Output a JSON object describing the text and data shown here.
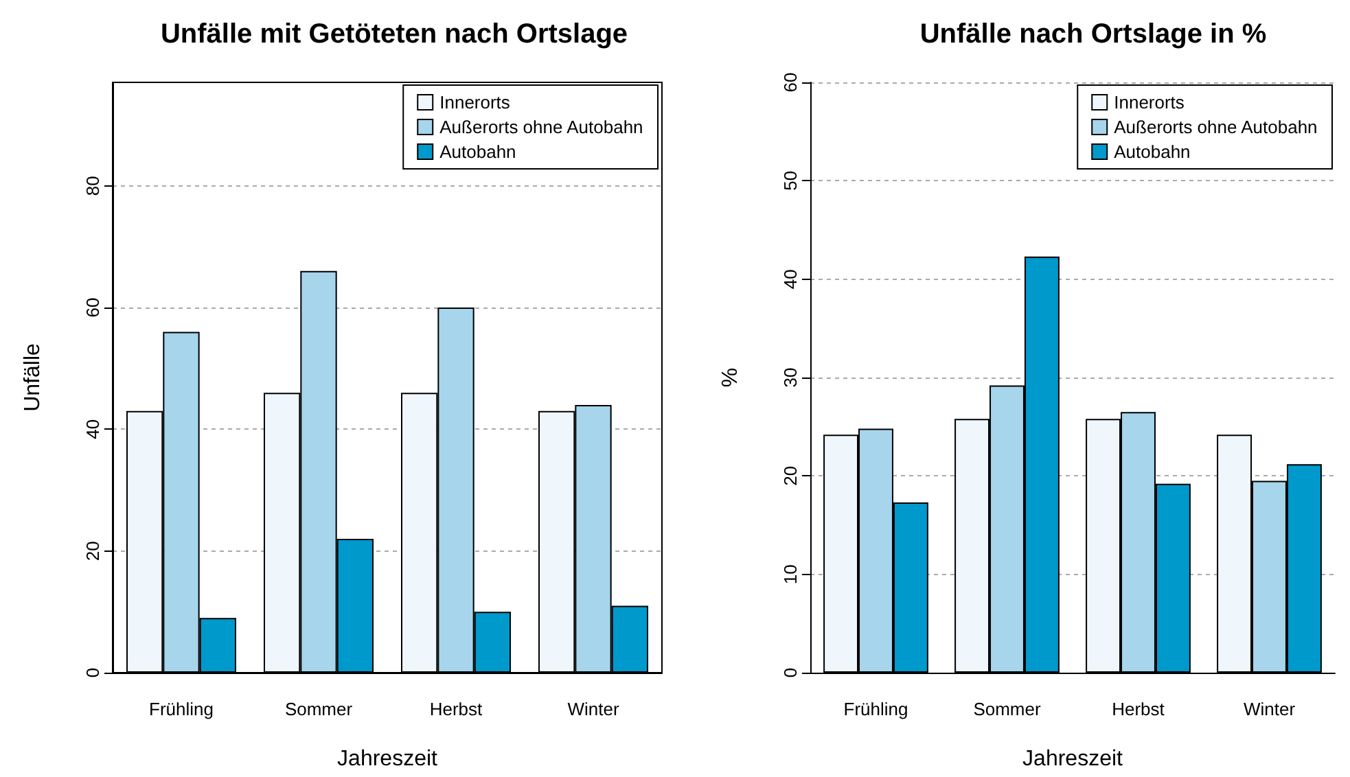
{
  "chart_data": [
    {
      "type": "bar",
      "title": "Unfälle mit Getöteten nach Ortslage",
      "xlabel": "Jahreszeit",
      "ylabel": "Unfälle",
      "categories": [
        "Frühling",
        "Sommer",
        "Herbst",
        "Winter"
      ],
      "series": [
        {
          "name": "Innerorts",
          "color": "#eff7fd",
          "values": [
            43,
            46,
            46,
            43
          ]
        },
        {
          "name": "Außerorts ohne Autobahn",
          "color": "#a6d5ec",
          "values": [
            56,
            66,
            60,
            44
          ]
        },
        {
          "name": "Autobahn",
          "color": "#0099cc",
          "values": [
            9,
            22,
            10,
            11
          ]
        }
      ],
      "ylim": [
        0,
        97
      ],
      "yticks": [
        0,
        20,
        40,
        60,
        80
      ],
      "grid": "y",
      "legend": "top right"
    },
    {
      "type": "bar",
      "title": "Unfälle nach Ortslage in %",
      "xlabel": "Jahreszeit",
      "ylabel": "%",
      "categories": [
        "Frühling",
        "Sommer",
        "Herbst",
        "Winter"
      ],
      "series": [
        {
          "name": "Innerorts",
          "color": "#eff7fd",
          "values": [
            24.2,
            25.8,
            25.8,
            24.2
          ]
        },
        {
          "name": "Außerorts ohne Autobahn",
          "color": "#a6d5ec",
          "values": [
            24.8,
            29.2,
            26.5,
            19.5
          ]
        },
        {
          "name": "Autobahn",
          "color": "#0099cc",
          "values": [
            17.3,
            42.3,
            19.2,
            21.2
          ]
        }
      ],
      "ylim": [
        0,
        60
      ],
      "yticks": [
        0,
        10,
        20,
        30,
        40,
        50,
        60
      ],
      "grid": "y",
      "legend": "top right"
    }
  ]
}
